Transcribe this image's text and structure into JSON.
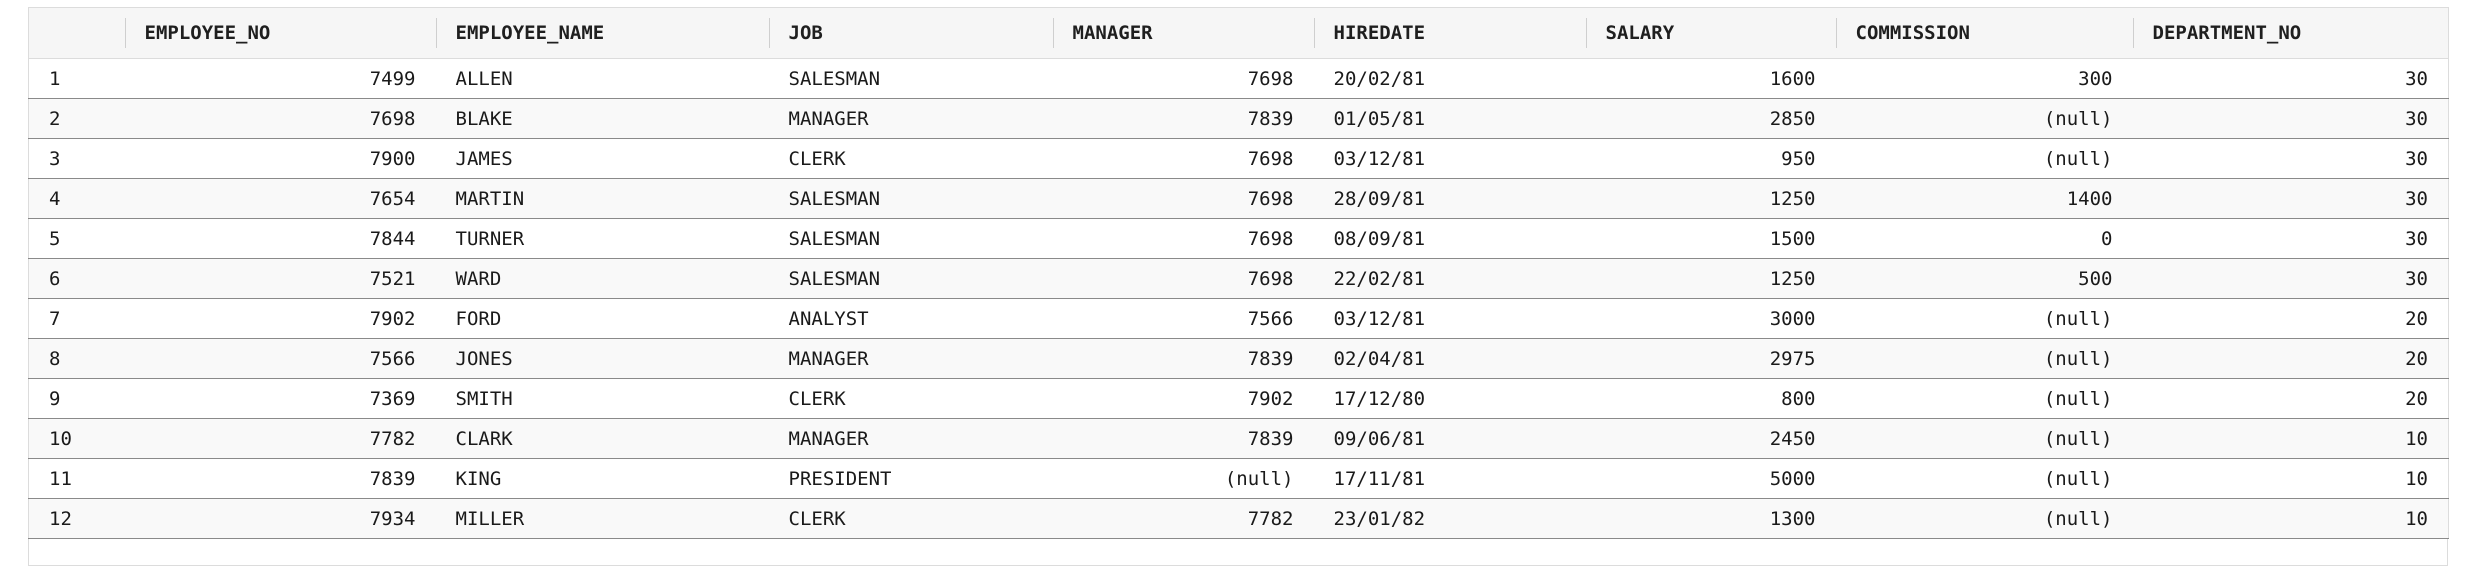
{
  "columns": {
    "rownum": "",
    "employee_no": "EMPLOYEE_NO",
    "employee_name": "EMPLOYEE_NAME",
    "job": "JOB",
    "manager": "MANAGER",
    "hiredate": "HIREDATE",
    "salary": "SALARY",
    "commission": "COMMISSION",
    "department_no": "DEPARTMENT_NO"
  },
  "rows": [
    {
      "rownum": "1",
      "employee_no": "7499",
      "employee_name": "ALLEN",
      "job": "SALESMAN",
      "manager": "7698",
      "hiredate": "20/02/81",
      "salary": "1600",
      "commission": "300",
      "department_no": "30"
    },
    {
      "rownum": "2",
      "employee_no": "7698",
      "employee_name": "BLAKE",
      "job": "MANAGER",
      "manager": "7839",
      "hiredate": "01/05/81",
      "salary": "2850",
      "commission": "(null)",
      "department_no": "30"
    },
    {
      "rownum": "3",
      "employee_no": "7900",
      "employee_name": "JAMES",
      "job": "CLERK",
      "manager": "7698",
      "hiredate": "03/12/81",
      "salary": "950",
      "commission": "(null)",
      "department_no": "30"
    },
    {
      "rownum": "4",
      "employee_no": "7654",
      "employee_name": "MARTIN",
      "job": "SALESMAN",
      "manager": "7698",
      "hiredate": "28/09/81",
      "salary": "1250",
      "commission": "1400",
      "department_no": "30"
    },
    {
      "rownum": "5",
      "employee_no": "7844",
      "employee_name": "TURNER",
      "job": "SALESMAN",
      "manager": "7698",
      "hiredate": "08/09/81",
      "salary": "1500",
      "commission": "0",
      "department_no": "30"
    },
    {
      "rownum": "6",
      "employee_no": "7521",
      "employee_name": "WARD",
      "job": "SALESMAN",
      "manager": "7698",
      "hiredate": "22/02/81",
      "salary": "1250",
      "commission": "500",
      "department_no": "30"
    },
    {
      "rownum": "7",
      "employee_no": "7902",
      "employee_name": "FORD",
      "job": "ANALYST",
      "manager": "7566",
      "hiredate": "03/12/81",
      "salary": "3000",
      "commission": "(null)",
      "department_no": "20"
    },
    {
      "rownum": "8",
      "employee_no": "7566",
      "employee_name": "JONES",
      "job": "MANAGER",
      "manager": "7839",
      "hiredate": "02/04/81",
      "salary": "2975",
      "commission": "(null)",
      "department_no": "20"
    },
    {
      "rownum": "9",
      "employee_no": "7369",
      "employee_name": "SMITH",
      "job": "CLERK",
      "manager": "7902",
      "hiredate": "17/12/80",
      "salary": "800",
      "commission": "(null)",
      "department_no": "20"
    },
    {
      "rownum": "10",
      "employee_no": "7782",
      "employee_name": "CLARK",
      "job": "MANAGER",
      "manager": "7839",
      "hiredate": "09/06/81",
      "salary": "2450",
      "commission": "(null)",
      "department_no": "10"
    },
    {
      "rownum": "11",
      "employee_no": "7839",
      "employee_name": "KING",
      "job": "PRESIDENT",
      "manager": "(null)",
      "hiredate": "17/11/81",
      "salary": "5000",
      "commission": "(null)",
      "department_no": "10"
    },
    {
      "rownum": "12",
      "employee_no": "7934",
      "employee_name": "MILLER",
      "job": "CLERK",
      "manager": "7782",
      "hiredate": "23/01/82",
      "salary": "1300",
      "commission": "(null)",
      "department_no": "10"
    }
  ]
}
